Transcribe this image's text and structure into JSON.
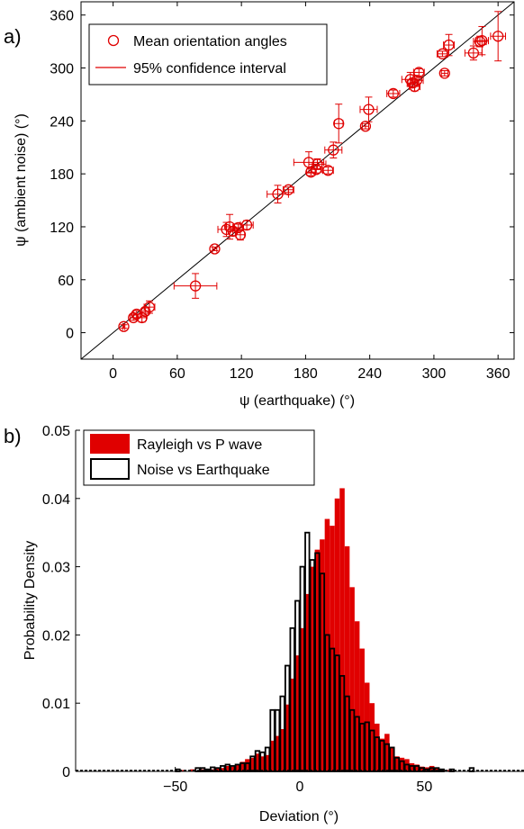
{
  "colors": {
    "red": "#e00000",
    "black": "#000000"
  },
  "chart_data": [
    {
      "type": "scatter",
      "panel_label": "a)",
      "xlabel": "ψ (earthquake) (°)",
      "ylabel": "ψ (ambient noise) (°)",
      "xlim": [
        -30,
        375
      ],
      "ylim": [
        -30,
        375
      ],
      "xticks": [
        0,
        60,
        120,
        180,
        240,
        300,
        360
      ],
      "yticks": [
        0,
        60,
        120,
        180,
        240,
        300,
        360
      ],
      "legend_position": "top-left",
      "series": [
        {
          "name": "Mean orientation angles",
          "marker": "open-circle",
          "points": [
            {
              "x": 10,
              "y": 7,
              "xerr": 1,
              "yerr": 2
            },
            {
              "x": 19,
              "y": 17,
              "xerr": 3,
              "yerr": 3
            },
            {
              "x": 22,
              "y": 21,
              "xerr": 3,
              "yerr": 4
            },
            {
              "x": 27,
              "y": 17,
              "xerr": 4,
              "yerr": 5
            },
            {
              "x": 30,
              "y": 24,
              "xerr": 3,
              "yerr": 4
            },
            {
              "x": 34,
              "y": 29,
              "xerr": 5,
              "yerr": 7
            },
            {
              "x": 77,
              "y": 53,
              "xerr": 20,
              "yerr": 14
            },
            {
              "x": 95,
              "y": 95,
              "xerr": 2,
              "yerr": 2
            },
            {
              "x": 106,
              "y": 117,
              "xerr": 8,
              "yerr": 8
            },
            {
              "x": 109,
              "y": 120,
              "xerr": 4,
              "yerr": 14
            },
            {
              "x": 112,
              "y": 115,
              "xerr": 3,
              "yerr": 5
            },
            {
              "x": 117,
              "y": 119,
              "xerr": 5,
              "yerr": 4
            },
            {
              "x": 119,
              "y": 111,
              "xerr": 4,
              "yerr": 6
            },
            {
              "x": 125,
              "y": 122,
              "xerr": 6,
              "yerr": 5
            },
            {
              "x": 154,
              "y": 157,
              "xerr": 10,
              "yerr": 10
            },
            {
              "x": 164,
              "y": 162,
              "xerr": 5,
              "yerr": 3
            },
            {
              "x": 183,
              "y": 193,
              "xerr": 14,
              "yerr": 12
            },
            {
              "x": 185,
              "y": 182,
              "xerr": 4,
              "yerr": 4
            },
            {
              "x": 190,
              "y": 185,
              "xerr": 5,
              "yerr": 4
            },
            {
              "x": 191,
              "y": 191,
              "xerr": 8,
              "yerr": 6
            },
            {
              "x": 201,
              "y": 184,
              "xerr": 5,
              "yerr": 4
            },
            {
              "x": 206,
              "y": 207,
              "xerr": 8,
              "yerr": 9
            },
            {
              "x": 211,
              "y": 237,
              "xerr": 4,
              "yerr": 22
            },
            {
              "x": 236,
              "y": 234,
              "xerr": 3,
              "yerr": 3
            },
            {
              "x": 239,
              "y": 253,
              "xerr": 8,
              "yerr": 14
            },
            {
              "x": 262,
              "y": 271,
              "xerr": 6,
              "yerr": 4
            },
            {
              "x": 278,
              "y": 287,
              "xerr": 8,
              "yerr": 8
            },
            {
              "x": 280,
              "y": 283,
              "xerr": 5,
              "yerr": 5
            },
            {
              "x": 282,
              "y": 279,
              "xerr": 5,
              "yerr": 5
            },
            {
              "x": 284,
              "y": 286,
              "xerr": 6,
              "yerr": 5
            },
            {
              "x": 286,
              "y": 295,
              "xerr": 5,
              "yerr": 4
            },
            {
              "x": 308,
              "y": 316,
              "xerr": 5,
              "yerr": 3
            },
            {
              "x": 310,
              "y": 294,
              "xerr": 3,
              "yerr": 3
            },
            {
              "x": 314,
              "y": 326,
              "xerr": 5,
              "yerr": 12
            },
            {
              "x": 337,
              "y": 317,
              "xerr": 8,
              "yerr": 8
            },
            {
              "x": 343,
              "y": 330,
              "xerr": 6,
              "yerr": 6
            },
            {
              "x": 345,
              "y": 331,
              "xerr": 6,
              "yerr": 16
            },
            {
              "x": 360,
              "y": 336,
              "xerr": 7,
              "yerr": 28
            }
          ]
        },
        {
          "name": "95% confidence interval",
          "marker": "errorbar-line"
        }
      ],
      "reference_line": {
        "from": [
          -30,
          -30
        ],
        "to": [
          375,
          375
        ]
      }
    },
    {
      "type": "bar",
      "panel_label": "b)",
      "xlabel": "Deviation (°)",
      "ylabel": "Probability Density",
      "xlim": [
        -90,
        90
      ],
      "ylim": [
        0,
        0.05
      ],
      "xticks": [
        -50,
        0,
        50
      ],
      "yticks": [
        0,
        0.01,
        0.02,
        0.03,
        0.04,
        0.05
      ],
      "ytick_labels": [
        "0",
        "0.01",
        "0.02",
        "0.03",
        "0.04",
        "0.05"
      ],
      "legend_position": "top-left",
      "bin_edges_start": -90,
      "bin_width": 2,
      "series": [
        {
          "name": "Rayleigh vs P wave",
          "style": "filled-red",
          "values": [
            0,
            0,
            0,
            0,
            0,
            0,
            0,
            0,
            0,
            0,
            0,
            0,
            0,
            0,
            0,
            0,
            0,
            0,
            0,
            0,
            0,
            0.0002,
            0,
            0.0003,
            0,
            0.0003,
            0.0002,
            0.0003,
            0.0004,
            0.0005,
            0.0008,
            0.0007,
            0.001,
            0.0014,
            0.0018,
            0.002,
            0.0026,
            0.0022,
            0.0024,
            0.0045,
            0.0052,
            0.0062,
            0.0098,
            0.0136,
            0.017,
            0.021,
            0.026,
            0.03,
            0.0325,
            0.034,
            0.037,
            0.036,
            0.04,
            0.0415,
            0.033,
            0.027,
            0.022,
            0.018,
            0.013,
            0.01,
            0.007,
            0.0048,
            0.0055,
            0.0036,
            0.0022,
            0.002,
            0.0018,
            0.0012,
            0.001,
            0.0007,
            0.0006,
            0.0008,
            0.0004,
            0.0003,
            0.0002,
            0.0001,
            0,
            0,
            0,
            0,
            0,
            0,
            0,
            0,
            0,
            0,
            0,
            0,
            0,
            0
          ]
        },
        {
          "name": "Noise vs Earthquake",
          "style": "open-black",
          "values": [
            0,
            0,
            0,
            0,
            0,
            0,
            0,
            0,
            0,
            0,
            0,
            0,
            0,
            0,
            0,
            0,
            0,
            0,
            0,
            0,
            0.0003,
            0,
            0,
            0,
            0.0005,
            0.0005,
            0.0003,
            0.0006,
            0.0005,
            0.0008,
            0.001,
            0.0008,
            0.001,
            0.0012,
            0.0012,
            0.0022,
            0.003,
            0.0028,
            0.0035,
            0.009,
            0.009,
            0.011,
            0.0155,
            0.021,
            0.025,
            0.03,
            0.035,
            0.031,
            0.032,
            0.029,
            0.02,
            0.018,
            0.017,
            0.014,
            0.011,
            0.009,
            0.008,
            0.007,
            0.0072,
            0.006,
            0.005,
            0.0045,
            0.004,
            0.0035,
            0.002,
            0.0015,
            0.001,
            0.0008,
            0.0008,
            0.0005,
            0.0003,
            0.0005,
            0.0005,
            0.0003,
            0,
            0.0003,
            0,
            0,
            0,
            0.0005,
            0,
            0,
            0,
            0,
            0,
            0,
            0,
            0,
            0,
            0
          ]
        }
      ]
    }
  ]
}
